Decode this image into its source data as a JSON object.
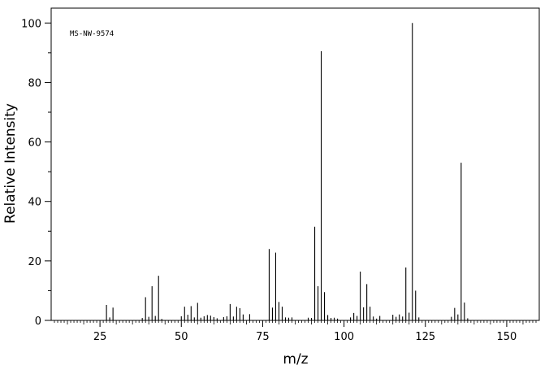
{
  "chart_data": {
    "type": "bar",
    "title": "",
    "annotation": "MS-NW-9574",
    "xlabel": "m/z",
    "ylabel": "Relative Intensity",
    "xlim": [
      10,
      160
    ],
    "ylim": [
      0,
      105
    ],
    "x_major_ticks": [
      25,
      50,
      75,
      100,
      125,
      150
    ],
    "y_major_ticks": [
      0,
      20,
      40,
      60,
      80,
      100
    ],
    "grid": false,
    "legend": "none",
    "peaks": [
      {
        "mz": 27,
        "intensity": 5.2
      },
      {
        "mz": 28,
        "intensity": 1.0
      },
      {
        "mz": 29,
        "intensity": 4.3
      },
      {
        "mz": 38,
        "intensity": 0.8
      },
      {
        "mz": 39,
        "intensity": 7.8
      },
      {
        "mz": 40,
        "intensity": 1.2
      },
      {
        "mz": 41,
        "intensity": 11.5
      },
      {
        "mz": 42,
        "intensity": 1.5
      },
      {
        "mz": 43,
        "intensity": 15.0
      },
      {
        "mz": 44,
        "intensity": 0.5
      },
      {
        "mz": 50,
        "intensity": 1.4
      },
      {
        "mz": 51,
        "intensity": 4.6
      },
      {
        "mz": 52,
        "intensity": 1.9
      },
      {
        "mz": 53,
        "intensity": 4.8
      },
      {
        "mz": 54,
        "intensity": 1.0
      },
      {
        "mz": 55,
        "intensity": 5.9
      },
      {
        "mz": 56,
        "intensity": 0.9
      },
      {
        "mz": 57,
        "intensity": 1.4
      },
      {
        "mz": 58,
        "intensity": 1.8
      },
      {
        "mz": 59,
        "intensity": 1.6
      },
      {
        "mz": 60,
        "intensity": 1.1
      },
      {
        "mz": 61,
        "intensity": 0.7
      },
      {
        "mz": 63,
        "intensity": 1.1
      },
      {
        "mz": 64,
        "intensity": 1.4
      },
      {
        "mz": 65,
        "intensity": 5.5
      },
      {
        "mz": 66,
        "intensity": 1.3
      },
      {
        "mz": 67,
        "intensity": 4.6
      },
      {
        "mz": 68,
        "intensity": 4.1
      },
      {
        "mz": 69,
        "intensity": 2.0
      },
      {
        "mz": 71,
        "intensity": 2.1
      },
      {
        "mz": 77,
        "intensity": 24.0
      },
      {
        "mz": 78,
        "intensity": 4.3
      },
      {
        "mz": 79,
        "intensity": 22.8
      },
      {
        "mz": 80,
        "intensity": 6.2
      },
      {
        "mz": 81,
        "intensity": 4.6
      },
      {
        "mz": 82,
        "intensity": 1.0
      },
      {
        "mz": 83,
        "intensity": 0.9
      },
      {
        "mz": 84,
        "intensity": 1.0
      },
      {
        "mz": 89,
        "intensity": 0.9
      },
      {
        "mz": 90,
        "intensity": 0.8
      },
      {
        "mz": 91,
        "intensity": 31.5
      },
      {
        "mz": 92,
        "intensity": 11.5
      },
      {
        "mz": 93,
        "intensity": 90.5
      },
      {
        "mz": 94,
        "intensity": 9.5
      },
      {
        "mz": 95,
        "intensity": 1.8
      },
      {
        "mz": 96,
        "intensity": 0.8
      },
      {
        "mz": 97,
        "intensity": 0.9
      },
      {
        "mz": 98,
        "intensity": 0.6
      },
      {
        "mz": 102,
        "intensity": 1.0
      },
      {
        "mz": 103,
        "intensity": 2.5
      },
      {
        "mz": 104,
        "intensity": 1.5
      },
      {
        "mz": 105,
        "intensity": 16.4
      },
      {
        "mz": 106,
        "intensity": 4.4
      },
      {
        "mz": 107,
        "intensity": 12.2
      },
      {
        "mz": 108,
        "intensity": 4.6
      },
      {
        "mz": 109,
        "intensity": 1.3
      },
      {
        "mz": 110,
        "intensity": 0.6
      },
      {
        "mz": 111,
        "intensity": 1.5
      },
      {
        "mz": 115,
        "intensity": 1.9
      },
      {
        "mz": 116,
        "intensity": 1.2
      },
      {
        "mz": 117,
        "intensity": 2.0
      },
      {
        "mz": 118,
        "intensity": 1.3
      },
      {
        "mz": 119,
        "intensity": 17.8
      },
      {
        "mz": 120,
        "intensity": 2.6
      },
      {
        "mz": 121,
        "intensity": 100.0
      },
      {
        "mz": 122,
        "intensity": 10.0
      },
      {
        "mz": 123,
        "intensity": 1.0
      },
      {
        "mz": 133,
        "intensity": 1.2
      },
      {
        "mz": 134,
        "intensity": 4.2
      },
      {
        "mz": 135,
        "intensity": 2.0
      },
      {
        "mz": 136,
        "intensity": 53.0
      },
      {
        "mz": 137,
        "intensity": 6.0
      },
      {
        "mz": 138,
        "intensity": 0.7
      }
    ]
  }
}
